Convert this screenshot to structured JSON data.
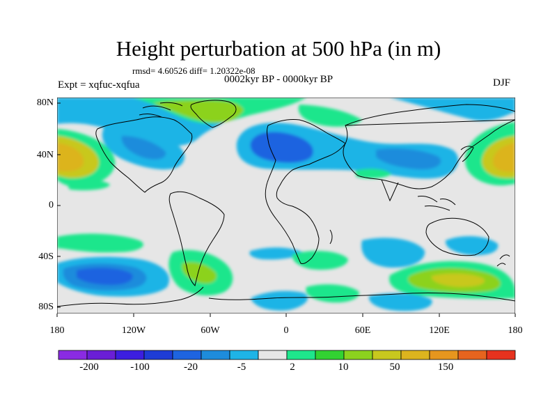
{
  "title": "Height perturbation at 500 hPa (in m)",
  "stats_line": "rmsd= 4.60526 diff= 1.20322e-08",
  "period": "0002kyr BP - 0000kyr BP",
  "experiment": "Expt = xqfuc-xqfua",
  "season": "DJF",
  "lat_ticks": [
    "80N",
    "40N",
    "0",
    "40S",
    "80S"
  ],
  "lon_ticks": [
    "180",
    "120W",
    "60W",
    "0",
    "60E",
    "120E",
    "180"
  ],
  "colorbar": {
    "colors": [
      "#8a2be2",
      "#6a1fd6",
      "#3c1ee0",
      "#1e3cd6",
      "#1e64e0",
      "#1e8cdc",
      "#1eb4e6",
      "#e6e6e6",
      "#1ee68c",
      "#32d232",
      "#8cd21e",
      "#c8c81e",
      "#dcb41e",
      "#e6961e",
      "#e6641e",
      "#e6321e"
    ],
    "labels": [
      "-200",
      "-100",
      "-20",
      "-5",
      "2",
      "10",
      "50",
      "150"
    ]
  },
  "map_colors": {
    "background": "#e6e6e6",
    "cyan": "#1eb4e6",
    "lightblue": "#1e8cdc",
    "blue": "#1e64e0",
    "green": "#1ee68c",
    "lime": "#8cd21e",
    "yellow": "#c8c81e",
    "orange": "#dcb41e"
  }
}
